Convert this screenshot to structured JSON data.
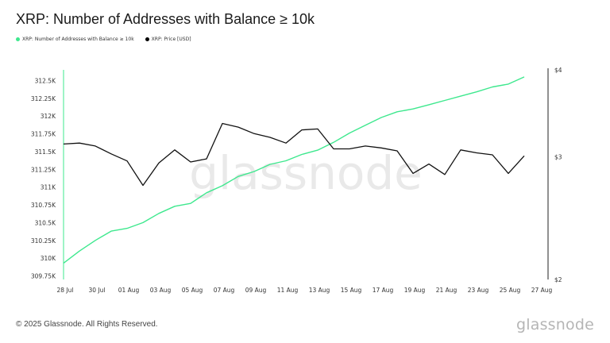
{
  "title": "XRP: Number of Addresses with Balance ≥ 10k",
  "legend": [
    {
      "label": "XRP: Number of Addresses with Balance ≥ 10k",
      "color": "#3ee88e"
    },
    {
      "label": "XRP: Price [USD]",
      "color": "#000000"
    }
  ],
  "watermark": "glassnode",
  "footer": "© 2025 Glassnode. All Rights Reserved.",
  "brand": "glassnode",
  "chart_data": {
    "type": "line",
    "title": "XRP: Number of Addresses with Balance ≥ 10k",
    "x": [
      "28 Jul",
      "29 Jul",
      "30 Jul",
      "31 Jul",
      "01 Aug",
      "02 Aug",
      "03 Aug",
      "04 Aug",
      "05 Aug",
      "06 Aug",
      "07 Aug",
      "08 Aug",
      "09 Aug",
      "10 Aug",
      "11 Aug",
      "12 Aug",
      "13 Aug",
      "14 Aug",
      "15 Aug",
      "16 Aug",
      "17 Aug",
      "18 Aug",
      "19 Aug",
      "20 Aug",
      "21 Aug",
      "22 Aug",
      "23 Aug",
      "24 Aug",
      "25 Aug",
      "26 Aug"
    ],
    "x_ticks": [
      "28 Jul",
      "30 Jul",
      "01 Aug",
      "03 Aug",
      "05 Aug",
      "07 Aug",
      "09 Aug",
      "11 Aug",
      "13 Aug",
      "15 Aug",
      "17 Aug",
      "19 Aug",
      "21 Aug",
      "23 Aug",
      "25 Aug",
      "27 Aug"
    ],
    "y_left": {
      "range": [
        309.7,
        312.65
      ],
      "ticks": [
        309.75,
        310,
        310.25,
        310.5,
        310.75,
        311,
        311.25,
        311.5,
        311.75,
        312,
        312.25,
        312.5
      ],
      "tick_labels": [
        "309.75K",
        "310K",
        "310.25K",
        "310.5K",
        "310.75K",
        "311K",
        "311.25K",
        "311.5K",
        "311.75K",
        "312K",
        "312.25K",
        "312.5K"
      ]
    },
    "y_right": {
      "scale": "log",
      "range": [
        2,
        4
      ],
      "ticks": [
        2,
        3,
        4
      ],
      "tick_labels": [
        "$2",
        "$3",
        "$4"
      ]
    },
    "series": [
      {
        "name": "XRP: Number of Addresses with Balance ≥ 10k",
        "axis": "left",
        "color": "#3ee88e",
        "values": [
          309.93,
          310.1,
          310.25,
          310.38,
          310.42,
          310.5,
          310.63,
          310.73,
          310.77,
          310.92,
          311.02,
          311.15,
          311.22,
          311.32,
          311.37,
          311.46,
          311.52,
          311.63,
          311.76,
          311.87,
          311.98,
          312.06,
          312.1,
          312.16,
          312.22,
          312.28,
          312.34,
          312.41,
          312.45,
          312.55
        ]
      },
      {
        "name": "XRP: Price [USD]",
        "axis": "right",
        "color": "#111111",
        "values": [
          3.13,
          3.14,
          3.11,
          3.03,
          2.96,
          2.73,
          2.94,
          3.07,
          2.95,
          2.98,
          3.35,
          3.31,
          3.24,
          3.2,
          3.14,
          3.28,
          3.29,
          3.08,
          3.08,
          3.11,
          3.09,
          3.06,
          2.84,
          2.93,
          2.83,
          3.07,
          3.04,
          3.02,
          2.84,
          3.01
        ]
      }
    ]
  }
}
